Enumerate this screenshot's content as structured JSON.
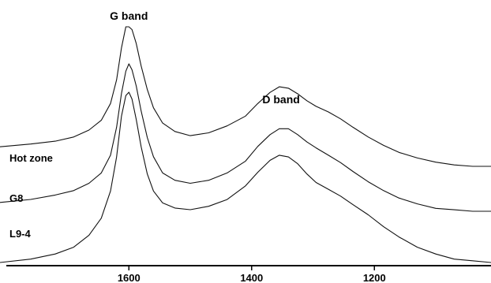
{
  "chart_data": {
    "type": "line",
    "title": "",
    "xlabel": "",
    "ylabel": "",
    "x_reversed": true,
    "xlim": [
      1810,
      1010
    ],
    "x_ticks": [
      1600,
      1400,
      1200
    ],
    "y_axis_shown": false,
    "grid": false,
    "annotations": [
      {
        "text": "G band",
        "x": 1600
      },
      {
        "text": "D band",
        "x": 1352
      }
    ],
    "series": [
      {
        "name": "Hot zone",
        "x": [
          1810,
          1760,
          1720,
          1690,
          1665,
          1645,
          1630,
          1620,
          1612,
          1605,
          1600,
          1595,
          1588,
          1580,
          1570,
          1560,
          1545,
          1525,
          1500,
          1470,
          1440,
          1410,
          1390,
          1370,
          1355,
          1340,
          1325,
          1310,
          1295,
          1275,
          1255,
          1235,
          1210,
          1185,
          1160,
          1130,
          1100,
          1070,
          1040,
          1010
        ],
        "y": [
          0.14,
          0.16,
          0.18,
          0.21,
          0.26,
          0.33,
          0.45,
          0.62,
          0.85,
          1.0,
          1.0,
          0.98,
          0.88,
          0.72,
          0.55,
          0.42,
          0.31,
          0.25,
          0.22,
          0.24,
          0.29,
          0.36,
          0.45,
          0.53,
          0.57,
          0.56,
          0.52,
          0.47,
          0.43,
          0.39,
          0.34,
          0.28,
          0.21,
          0.15,
          0.1,
          0.06,
          0.03,
          0.01,
          0.0,
          0.0
        ]
      },
      {
        "name": "G8",
        "x": [
          1810,
          1760,
          1720,
          1690,
          1665,
          1645,
          1630,
          1620,
          1612,
          1605,
          1600,
          1595,
          1588,
          1580,
          1570,
          1560,
          1545,
          1525,
          1500,
          1470,
          1440,
          1410,
          1390,
          1370,
          1355,
          1340,
          1325,
          1310,
          1295,
          1275,
          1255,
          1235,
          1210,
          1185,
          1160,
          1130,
          1100,
          1070,
          1040,
          1010
        ],
        "y": [
          0.06,
          0.08,
          0.11,
          0.14,
          0.19,
          0.26,
          0.38,
          0.57,
          0.8,
          0.95,
          1.0,
          0.96,
          0.85,
          0.68,
          0.5,
          0.37,
          0.26,
          0.21,
          0.19,
          0.21,
          0.26,
          0.34,
          0.44,
          0.52,
          0.56,
          0.56,
          0.52,
          0.47,
          0.43,
          0.38,
          0.33,
          0.27,
          0.2,
          0.14,
          0.09,
          0.05,
          0.02,
          0.01,
          0.0,
          0.0
        ]
      },
      {
        "name": "L9-4",
        "x": [
          1810,
          1760,
          1720,
          1690,
          1665,
          1645,
          1630,
          1620,
          1612,
          1605,
          1600,
          1595,
          1588,
          1580,
          1570,
          1560,
          1545,
          1525,
          1500,
          1470,
          1440,
          1410,
          1390,
          1370,
          1355,
          1340,
          1325,
          1310,
          1295,
          1275,
          1255,
          1235,
          1210,
          1185,
          1160,
          1130,
          1100,
          1070,
          1040,
          1010
        ],
        "y": [
          0.0,
          0.02,
          0.05,
          0.09,
          0.16,
          0.26,
          0.42,
          0.62,
          0.86,
          0.98,
          1.0,
          0.96,
          0.84,
          0.68,
          0.52,
          0.42,
          0.35,
          0.32,
          0.31,
          0.33,
          0.37,
          0.45,
          0.53,
          0.6,
          0.63,
          0.62,
          0.58,
          0.52,
          0.47,
          0.43,
          0.39,
          0.34,
          0.28,
          0.21,
          0.15,
          0.09,
          0.05,
          0.02,
          0.01,
          0.0
        ]
      }
    ]
  }
}
